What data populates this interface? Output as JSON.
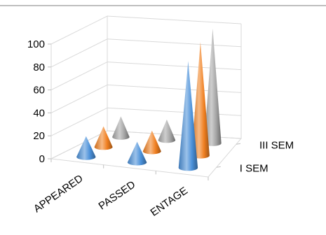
{
  "chart_data": {
    "type": "bar",
    "shape": "3d-cone",
    "categories": [
      "APPEARED",
      "PASSED",
      "PERCENTAGE"
    ],
    "category_tick_texts": [
      "APPEARED",
      "PASSED",
      "ENTAGE"
    ],
    "series": [
      {
        "name": "I SEM",
        "color": "#4a90d9",
        "values": [
          18,
          18,
          93
        ]
      },
      {
        "name": "",
        "color": "#f07f20",
        "values": [
          18,
          18,
          99
        ]
      },
      {
        "name": "III SEM",
        "color": "#a5a5a5",
        "values": [
          18,
          18,
          100
        ]
      }
    ],
    "depth_labels": [
      "I SEM",
      "III SEM"
    ],
    "y_ticks": [
      0,
      20,
      40,
      60,
      80,
      100
    ],
    "ylim": [
      0,
      100
    ],
    "grid": true,
    "legend": "none"
  }
}
